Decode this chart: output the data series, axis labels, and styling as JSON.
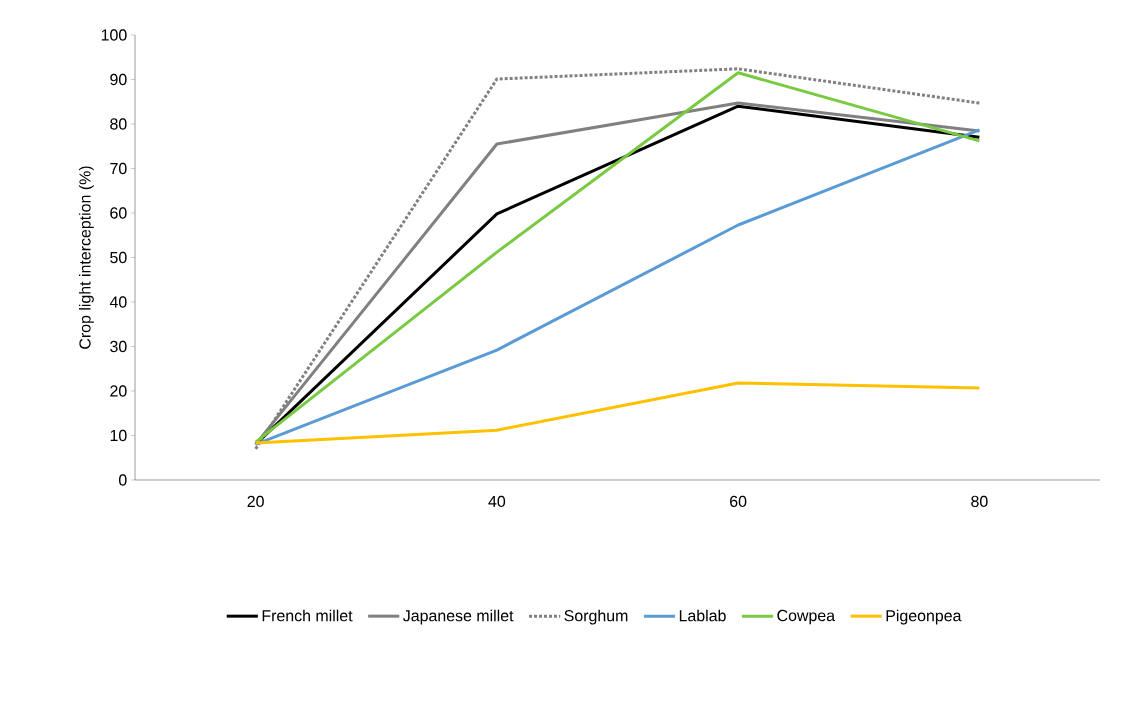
{
  "chart_data": {
    "type": "line",
    "ylabel": "Crop light interception (%)",
    "categories": [
      "20",
      "40",
      "60",
      "80"
    ],
    "ylim": [
      0,
      100
    ],
    "yticks": [
      0,
      10,
      20,
      30,
      40,
      50,
      60,
      70,
      80,
      90,
      100
    ],
    "grid": false,
    "legend": "bottom",
    "marker": "none",
    "series": [
      {
        "name": "French millet",
        "color": "#000000",
        "values": [
          8,
          59.8,
          84,
          77
        ]
      },
      {
        "name": "Japanese millet",
        "color": "#808080",
        "values": [
          8,
          75.5,
          84.7,
          78.4
        ]
      },
      {
        "name": "Sorghum",
        "color": "#808080",
        "line_style": "dotted",
        "values": [
          7,
          90.1,
          92.4,
          84.7
        ]
      },
      {
        "name": "Lablab",
        "color": "#5b9bd5",
        "values": [
          8,
          29.2,
          57.3,
          78.7
        ]
      },
      {
        "name": "Cowpea",
        "color": "#7ac943",
        "values": [
          8.5,
          51.2,
          91.5,
          76.2
        ]
      },
      {
        "name": "Pigeonpea",
        "color": "#ffc000",
        "values": [
          8.3,
          11.2,
          21.8,
          20.7
        ]
      }
    ]
  }
}
